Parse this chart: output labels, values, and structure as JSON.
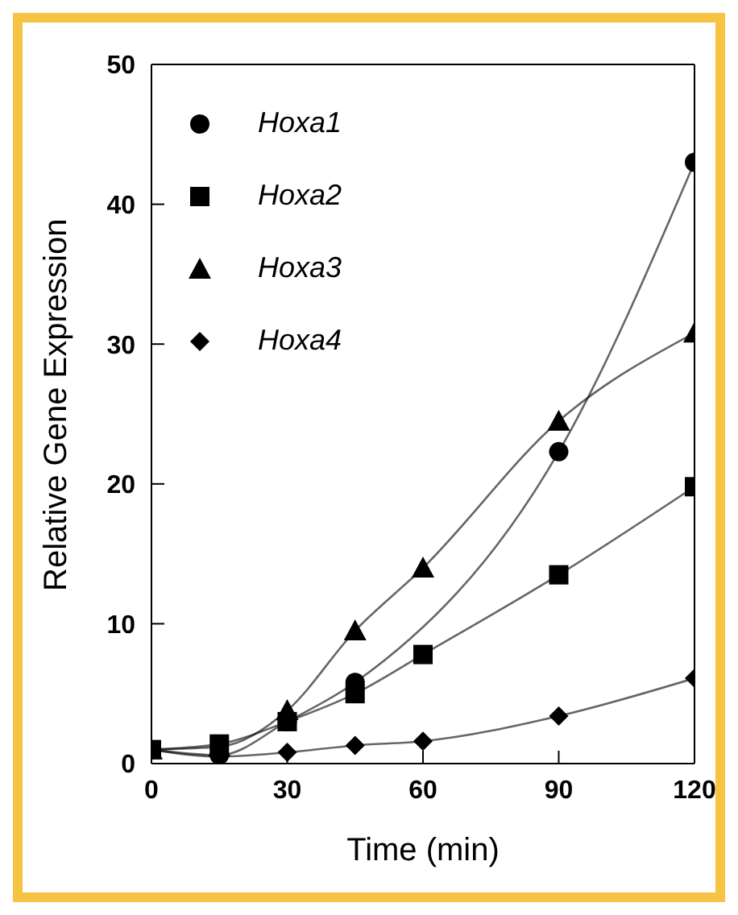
{
  "chart_data": {
    "type": "line",
    "xlabel": "Time (min)",
    "ylabel": "Relative Gene Expression",
    "x": [
      0,
      15,
      30,
      45,
      60,
      90,
      120
    ],
    "series": [
      {
        "name": "Hoxa1",
        "color": "#000000",
        "marker": "circle",
        "values": [
          1,
          0.6,
          3,
          5.8,
          null,
          22.3,
          43
        ]
      },
      {
        "name": "Hoxa2",
        "color": "#000000",
        "marker": "square",
        "values": [
          1,
          1.4,
          3,
          5,
          7.8,
          13.5,
          19.8
        ]
      },
      {
        "name": "Hoxa3",
        "color": "#000000",
        "marker": "triangle",
        "values": [
          1,
          1.2,
          3.8,
          9.5,
          14,
          24.5,
          30.8
        ]
      },
      {
        "name": "Hoxa4",
        "color": "#000000",
        "marker": "diamond",
        "values": [
          1,
          0.5,
          0.8,
          1.3,
          1.6,
          3.4,
          6.1
        ]
      }
    ],
    "xlim": [
      0,
      120
    ],
    "xticks": [
      0,
      30,
      60,
      90,
      120
    ],
    "ylim": [
      0,
      50
    ],
    "yticks": [
      0,
      10,
      20,
      30,
      40,
      50
    ],
    "grid": false,
    "legend": "top left"
  }
}
